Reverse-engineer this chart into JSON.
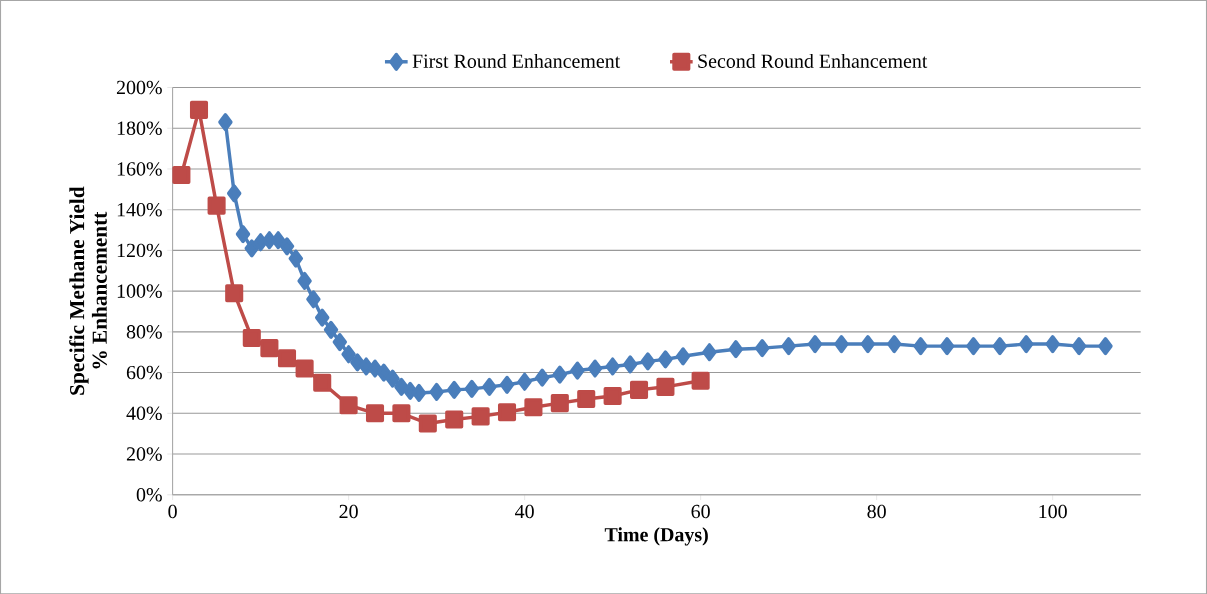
{
  "chart_data": {
    "type": "line",
    "xlabel": "Time (Days)",
    "ylabel": "Specific Methane Yield\n% Enhancementt",
    "xlim": [
      0,
      110
    ],
    "xticks": [
      0,
      20,
      40,
      60,
      80,
      100
    ],
    "ylim": [
      0,
      200
    ],
    "yticks": [
      {
        "value": 0,
        "label": "0%"
      },
      {
        "value": 20,
        "label": "20%"
      },
      {
        "value": 40,
        "label": "40%"
      },
      {
        "value": 60,
        "label": "60%"
      },
      {
        "value": 80,
        "label": "80%"
      },
      {
        "value": 100,
        "label": "100%"
      },
      {
        "value": 120,
        "label": "120%"
      },
      {
        "value": 140,
        "label": "140%"
      },
      {
        "value": 160,
        "label": "160%"
      },
      {
        "value": 180,
        "label": "180%"
      },
      {
        "value": 200,
        "label": "200%"
      }
    ],
    "grid": "y",
    "legend": "top",
    "line_style": "solid",
    "series": [
      {
        "name": "First Round Enhancement",
        "color": "#4a7ebb",
        "marker": "diamond",
        "x": [
          6,
          7,
          8,
          9,
          10,
          11,
          12,
          13,
          14,
          15,
          16,
          17,
          18,
          19,
          20,
          21,
          22,
          23,
          24,
          25,
          26,
          27,
          28,
          30,
          32,
          34,
          36,
          38,
          40,
          42,
          44,
          46,
          48,
          50,
          52,
          54,
          56,
          58,
          61,
          64,
          67,
          70,
          73,
          76,
          79,
          82,
          85,
          88,
          91,
          94,
          97,
          100,
          103,
          106
        ],
        "values": [
          183,
          148,
          128,
          121,
          124,
          125,
          125,
          122,
          116,
          105,
          96,
          87,
          81,
          75,
          69,
          65,
          63,
          62,
          60,
          57,
          53,
          51,
          50,
          50.5,
          51.5,
          52,
          53,
          54,
          55.5,
          57.5,
          59,
          61,
          62,
          63,
          64,
          65.5,
          66.5,
          68,
          70,
          71.5,
          72,
          73,
          74,
          74,
          74,
          74,
          73,
          73,
          73,
          73,
          74,
          74,
          73,
          73
        ]
      },
      {
        "name": "Second Round Enhancement",
        "color": "#be4b48",
        "marker": "square",
        "x": [
          1,
          3,
          5,
          7,
          9,
          11,
          13,
          15,
          17,
          20,
          23,
          26,
          29,
          32,
          35,
          38,
          41,
          44,
          47,
          50,
          53,
          56,
          60
        ],
        "values": [
          157,
          189,
          142,
          99,
          77,
          72,
          67,
          62,
          55,
          44,
          40,
          40,
          35,
          37,
          38.5,
          40.5,
          43,
          45,
          47,
          48.5,
          51.5,
          53,
          56
        ]
      }
    ]
  }
}
